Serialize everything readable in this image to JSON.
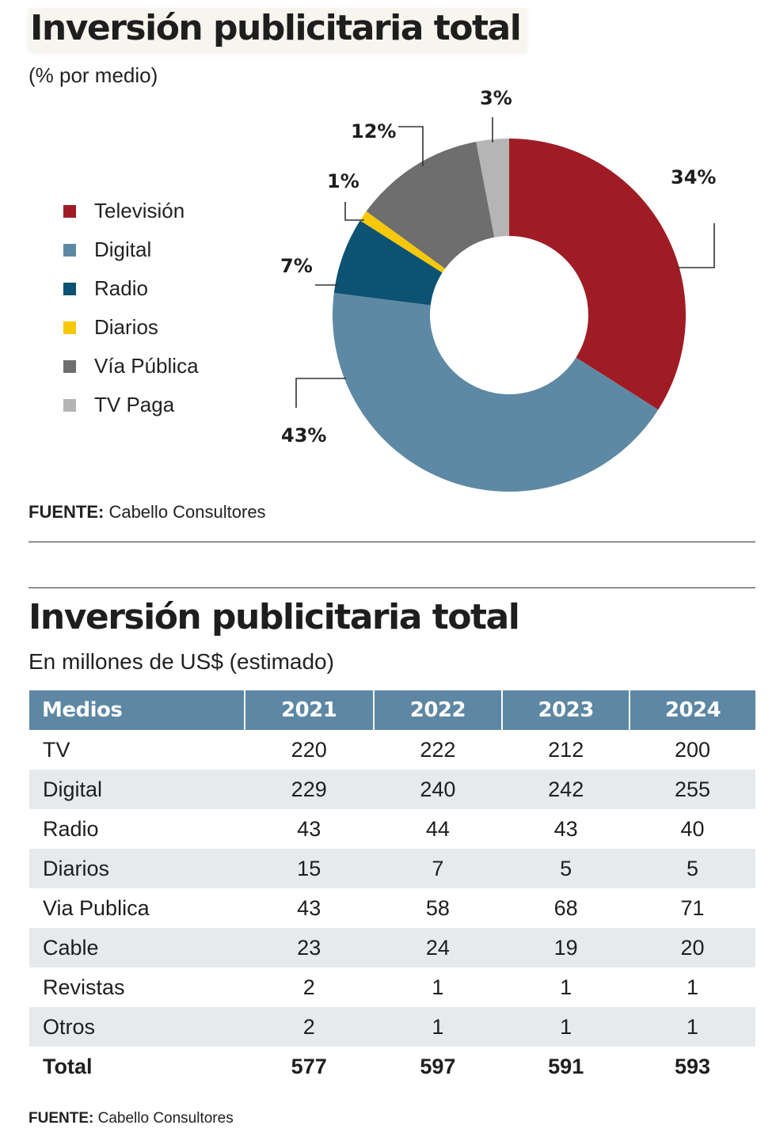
{
  "pie": {
    "title": "Inversión publicitaria total",
    "subtitle": "(% por medio)",
    "source_label": "FUENTE:",
    "source_text": "Cabello Consultores"
  },
  "table_section": {
    "title": "Inversión publicitaria total",
    "subtitle": "En millones de US$ (estimado)",
    "source_label": "FUENTE:",
    "source_text": "Cabello Consultores"
  },
  "chart_data": [
    {
      "type": "pie",
      "variant": "donut",
      "title": "Inversión publicitaria total",
      "subtitle": "(% por medio)",
      "legend_position": "left",
      "categories": [
        "Televisión",
        "Digital",
        "Radio",
        "Diarios",
        "Vía Pública",
        "TV Paga"
      ],
      "values": [
        34,
        43,
        7,
        1,
        12,
        3
      ],
      "labels": [
        "34%",
        "43%",
        "7%",
        "1%",
        "12%",
        "3%"
      ],
      "colors": [
        "#a01c24",
        "#5e89a5",
        "#0b5273",
        "#f6c80a",
        "#6e6e6e",
        "#b5b5b5"
      ]
    },
    {
      "type": "table",
      "title": "Inversión publicitaria total",
      "subtitle": "En millones de US$ (estimado)",
      "columns": [
        "Medios",
        "2021",
        "2022",
        "2023",
        "2024"
      ],
      "rows": [
        {
          "label": "TV",
          "values": [
            "220",
            "222",
            "212",
            "200"
          ]
        },
        {
          "label": "Digital",
          "values": [
            "229",
            "240",
            "242",
            "255"
          ]
        },
        {
          "label": "Radio",
          "values": [
            "43",
            "44",
            "43",
            "40"
          ]
        },
        {
          "label": "Diarios",
          "values": [
            "15",
            "7",
            "5",
            "5"
          ]
        },
        {
          "label": "Via Publica",
          "values": [
            "43",
            "58",
            "68",
            "71"
          ]
        },
        {
          "label": "Cable",
          "values": [
            "23",
            "24",
            "19",
            "20"
          ]
        },
        {
          "label": "Revistas",
          "values": [
            "2",
            "1",
            "1",
            "1"
          ]
        },
        {
          "label": "Otros",
          "values": [
            "2",
            "1",
            "1",
            "1"
          ]
        }
      ],
      "total": {
        "label": "Total",
        "values": [
          "577",
          "597",
          "591",
          "593"
        ]
      },
      "header_color": "#5d87a3",
      "stripe_color": "#e6eaed"
    }
  ]
}
